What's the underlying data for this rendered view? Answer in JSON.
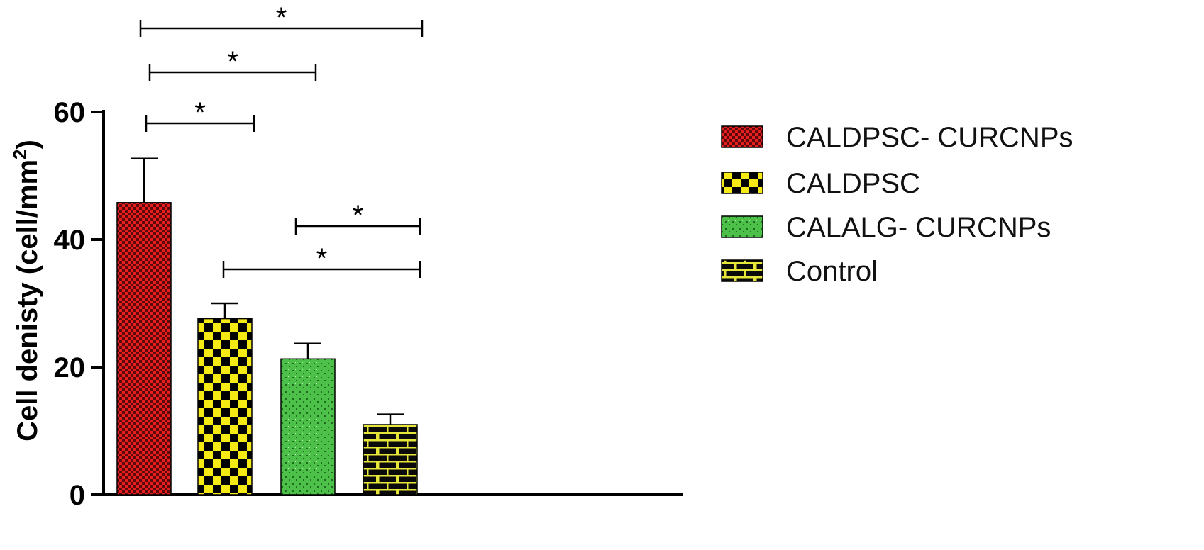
{
  "chart_data": {
    "type": "bar",
    "title": "",
    "xlabel": "",
    "ylabel": "Cell denisty (cell/mm",
    "ylabel_superscript": "2",
    "ylabel_suffix": ")",
    "ylim": [
      0,
      60
    ],
    "yticks": [
      0,
      20,
      40,
      60
    ],
    "grid": false,
    "legend_position": "right",
    "categories": [
      "CALDPSC- CURCNPs",
      "CALDPSC",
      "CALALG- CURCNPs",
      "Control"
    ],
    "values": [
      45.8,
      27.6,
      21.3,
      11.0
    ],
    "error_upper": [
      6.9,
      2.4,
      2.4,
      1.6
    ],
    "series": [
      {
        "name": "CALDPSC- CURCNPs",
        "value": 45.8,
        "error": 6.9,
        "color": "#e02020",
        "pattern": "red-check"
      },
      {
        "name": "CALDPSC",
        "value": 27.6,
        "error": 2.4,
        "color": "#f5ea14",
        "pattern": "yellow-check"
      },
      {
        "name": "CALALG- CURCNPs",
        "value": 21.3,
        "error": 2.4,
        "color": "#4cc048",
        "pattern": "green-dots"
      },
      {
        "name": "Control",
        "value": 11.0,
        "error": 1.6,
        "color": "#e6e63a",
        "pattern": "brick"
      }
    ],
    "significance": [
      {
        "from": 0,
        "to": 3,
        "label": "*"
      },
      {
        "from": 0,
        "to": 2,
        "label": "*"
      },
      {
        "from": 0,
        "to": 1,
        "label": "*"
      },
      {
        "from": 2,
        "to": 3,
        "label": "*"
      },
      {
        "from": 1,
        "to": 3,
        "label": "*"
      }
    ]
  }
}
